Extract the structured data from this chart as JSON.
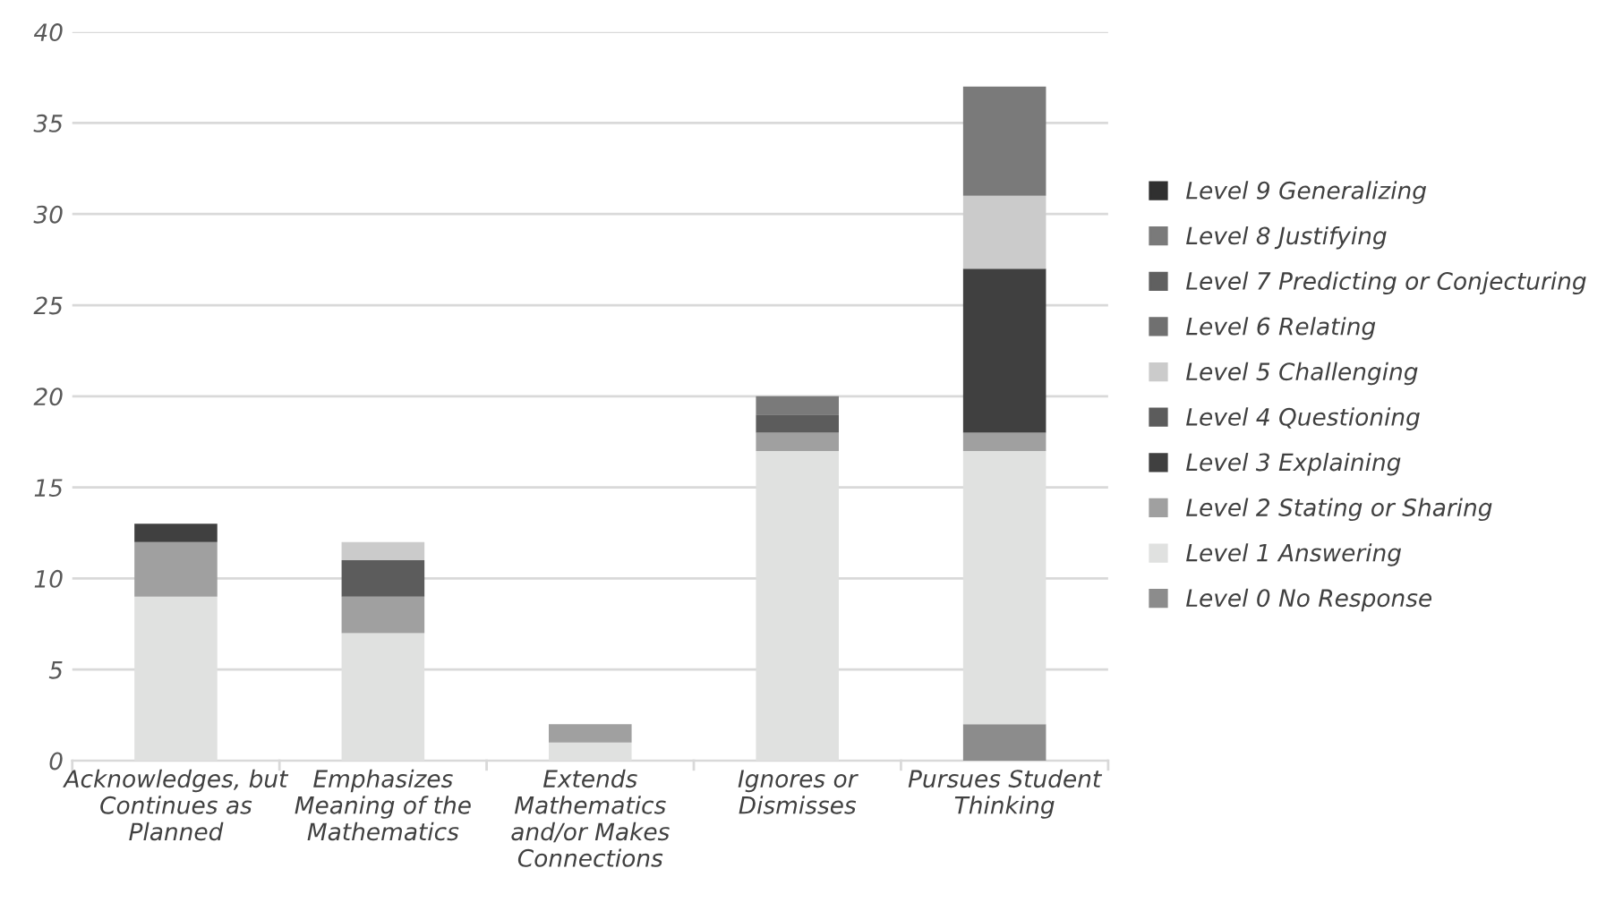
{
  "chart_data": {
    "type": "bar",
    "stacked": true,
    "categories": [
      "Acknowledges, but\nContinues as\nPlanned",
      "Emphasizes\nMeaning of the\nMathematics",
      "Extends\nMathematics\nand/or Makes\nConnections",
      "Ignores or\nDismisses",
      "Pursues Student\nThinking"
    ],
    "series": [
      {
        "name": "Level 0 No Response",
        "color": "#8c8c8c",
        "values": [
          null,
          null,
          null,
          null,
          2
        ]
      },
      {
        "name": "Level 1 Answering",
        "color": "#e0e1e0",
        "values": [
          9,
          7,
          1,
          17,
          15
        ]
      },
      {
        "name": "Level 2 Stating or Sharing",
        "color": "#a0a0a0",
        "values": [
          3,
          2,
          1,
          1,
          1
        ]
      },
      {
        "name": "Level 3 Explaining",
        "color": "#404040",
        "values": [
          1,
          null,
          null,
          null,
          9
        ]
      },
      {
        "name": "Level 4 Questioning",
        "color": "#5c5c5c",
        "values": [
          null,
          2,
          null,
          1,
          null
        ]
      },
      {
        "name": "Level 5 Challenging",
        "color": "#cbcbcb",
        "values": [
          null,
          1,
          null,
          null,
          4
        ]
      },
      {
        "name": "Level 6 Relating",
        "color": "#707070",
        "values": [
          null,
          null,
          null,
          null,
          null
        ]
      },
      {
        "name": "Level 7 Predicting or Conjecturing",
        "color": "#606060",
        "values": [
          null,
          null,
          null,
          null,
          null
        ]
      },
      {
        "name": "Level 8 Justifying",
        "color": "#7a7a7a",
        "values": [
          null,
          null,
          null,
          1,
          6
        ]
      },
      {
        "name": "Level 9 Generalizing",
        "color": "#303030",
        "values": [
          null,
          null,
          null,
          null,
          null
        ]
      }
    ],
    "ylim": [
      0,
      40
    ],
    "yticks": [
      0,
      5,
      10,
      15,
      20,
      25,
      30,
      35,
      40
    ],
    "grid": "y",
    "legend": "right"
  }
}
